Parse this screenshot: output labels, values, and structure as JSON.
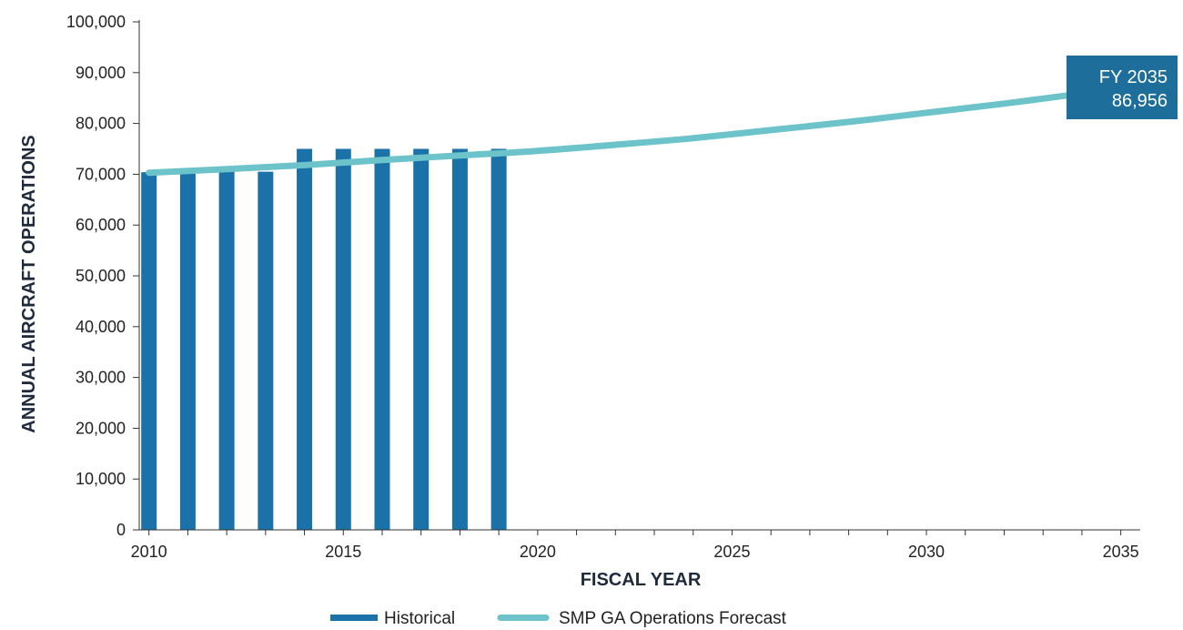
{
  "chart_data": {
    "type": "bar",
    "xlabel": "FISCAL YEAR",
    "ylabel": "ANNUAL AIRCRAFT OPERATIONS",
    "ylim": [
      0,
      100000
    ],
    "xlim": [
      2009.75,
      2035.5
    ],
    "x_ticks": [
      2010,
      2015,
      2020,
      2025,
      2030,
      2035
    ],
    "y_ticks": [
      0,
      10000,
      20000,
      30000,
      40000,
      50000,
      60000,
      70000,
      80000,
      90000,
      100000
    ],
    "x_tick_labels": [
      "2010",
      "2015",
      "2020",
      "2025",
      "2030",
      "2035"
    ],
    "y_tick_labels": [
      "0",
      "10,000",
      "20,000",
      "30,000",
      "40,000",
      "50,000",
      "60,000",
      "70,000",
      "80,000",
      "90,000",
      "100,000"
    ],
    "grid": false,
    "legend_position": "bottom",
    "series": [
      {
        "name": "Historical",
        "type": "bar",
        "color": "#1a72a8",
        "x": [
          2010,
          2011,
          2012,
          2013,
          2014,
          2015,
          2016,
          2017,
          2018,
          2019
        ],
        "values": [
          70400,
          70800,
          71200,
          70500,
          75000,
          75000,
          75000,
          75000,
          75000,
          75000
        ]
      },
      {
        "name": "SMP GA Operations Forecast",
        "type": "line",
        "color": "#6cc3c9",
        "x": [
          2010,
          2012,
          2014,
          2016,
          2018,
          2020,
          2022,
          2024,
          2026,
          2028,
          2030,
          2032,
          2034,
          2035
        ],
        "values": [
          70300,
          71000,
          71800,
          72800,
          73700,
          74600,
          75800,
          77100,
          78700,
          80300,
          82100,
          83900,
          85900,
          86956
        ]
      }
    ],
    "annotation": {
      "line1": "FY 2035",
      "line2": "86,956",
      "color": "#1d6e9a"
    }
  }
}
